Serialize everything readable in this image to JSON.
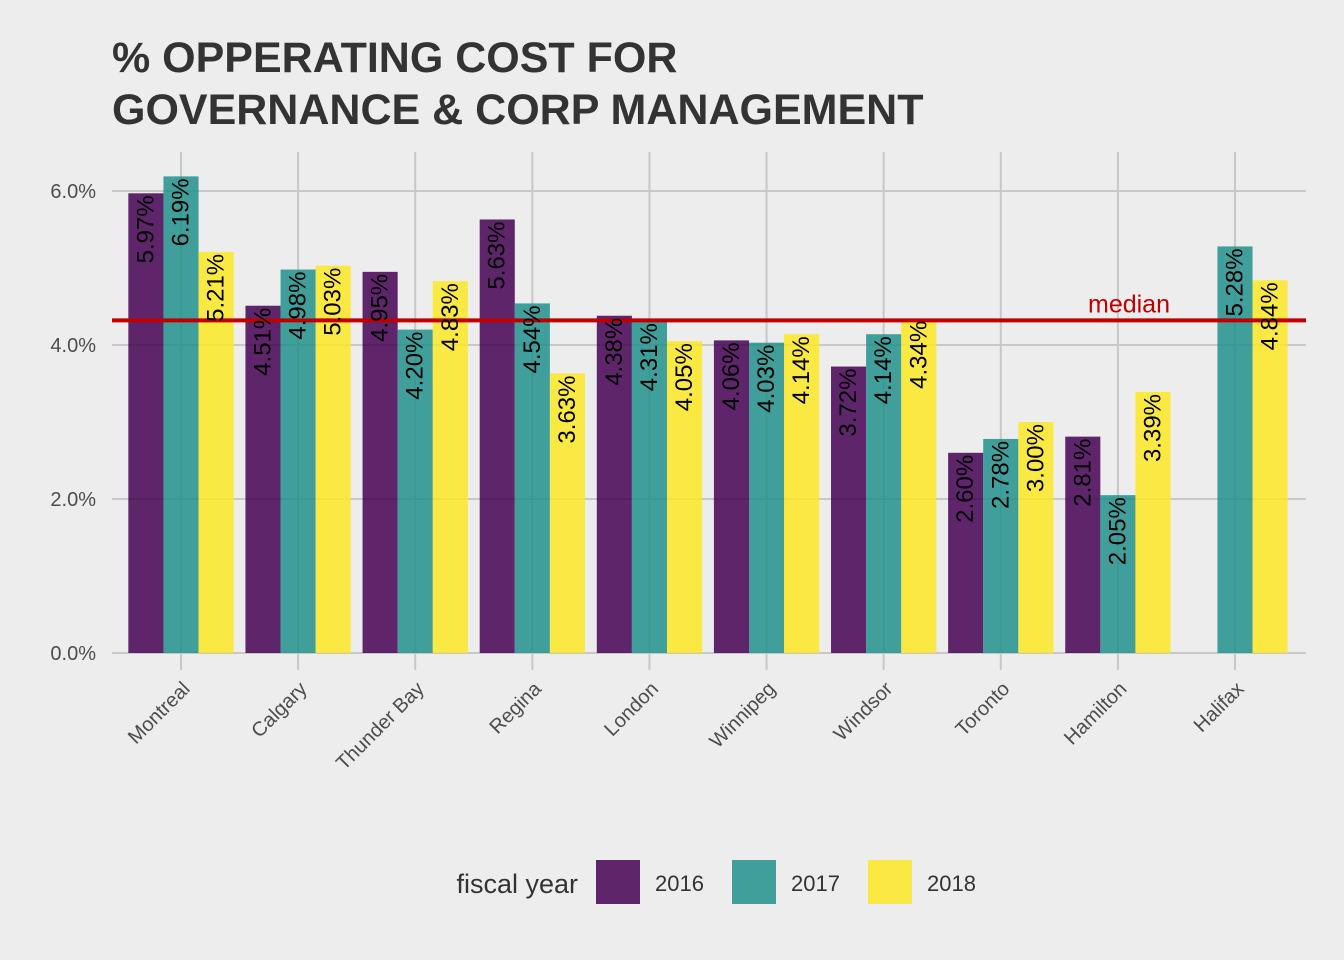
{
  "chart_data": {
    "type": "bar",
    "title_lines": [
      "% OPPERATING COST FOR",
      "GOVERNANCE & CORP MANAGEMENT"
    ],
    "xlabel": "",
    "ylabel": "",
    "ylim": [
      0,
      6.19
    ],
    "y_ticks": [
      0,
      2,
      4,
      6
    ],
    "y_tick_labels": [
      "0.0%",
      "2.0%",
      "4.0%",
      "6.0%"
    ],
    "categories": [
      "Montreal",
      "Calgary",
      "Thunder Bay",
      "Regina",
      "London",
      "Winnipeg",
      "Windsor",
      "Toronto",
      "Hamilton",
      "Halifax"
    ],
    "series": [
      {
        "name": "2016",
        "color": "#440154",
        "values": [
          5.97,
          4.51,
          4.95,
          5.63,
          4.38,
          4.06,
          3.72,
          2.6,
          2.81,
          null
        ],
        "labels": [
          "5.97%",
          "4.51%",
          "4.95%",
          "5.63%",
          "4.38%",
          "4.06%",
          "3.72%",
          "2.60%",
          "2.81%",
          ""
        ]
      },
      {
        "name": "2017",
        "color": "#21908C",
        "values": [
          6.19,
          4.98,
          4.2,
          4.54,
          4.31,
          4.03,
          4.14,
          2.78,
          2.05,
          5.28
        ],
        "labels": [
          "6.19%",
          "4.98%",
          "4.20%",
          "4.54%",
          "4.31%",
          "4.03%",
          "4.14%",
          "2.78%",
          "2.05%",
          "5.28%"
        ]
      },
      {
        "name": "2018",
        "color": "#FDE725",
        "values": [
          5.21,
          5.03,
          4.83,
          3.63,
          4.05,
          4.14,
          4.34,
          3.0,
          3.39,
          4.84
        ],
        "labels": [
          "5.21%",
          "5.03%",
          "4.83%",
          "3.63%",
          "4.05%",
          "4.14%",
          "4.34%",
          "3.00%",
          "3.39%",
          "4.84%"
        ]
      }
    ],
    "median": {
      "value": 4.32,
      "label": "median",
      "color": "#C00000"
    },
    "legend": {
      "title": "fiscal year",
      "placement": "bottom"
    },
    "grid": true
  }
}
